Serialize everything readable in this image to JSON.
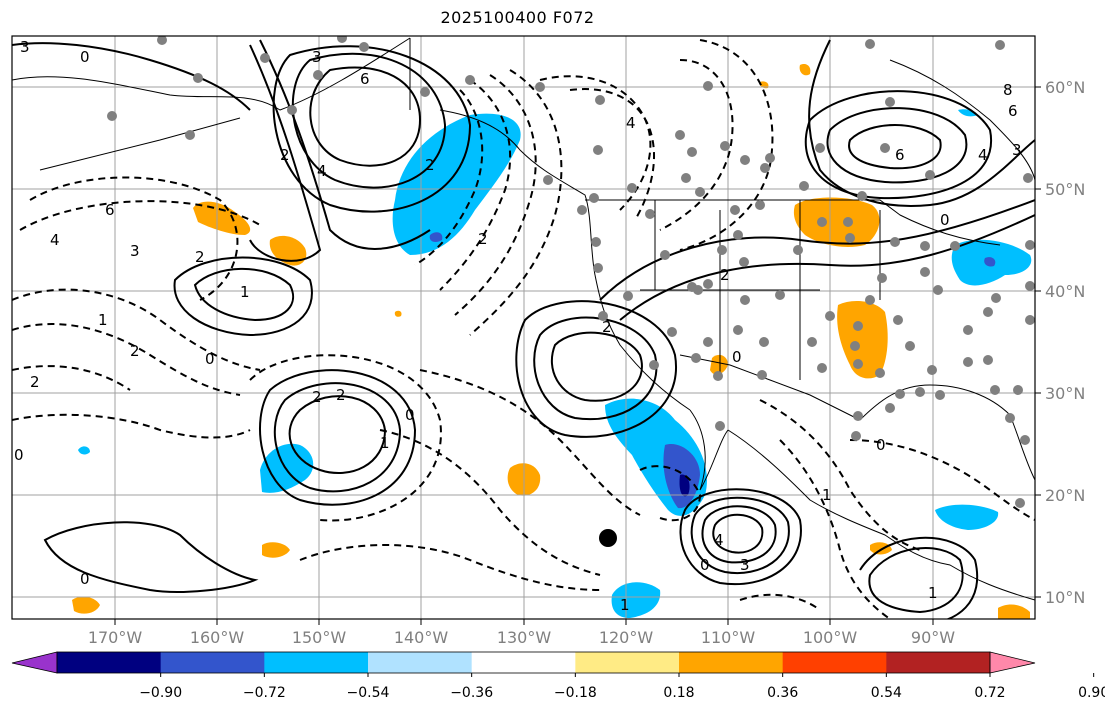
{
  "title": "2025100400 F072",
  "lon_ticks": [
    "170°W",
    "160°W",
    "150°W",
    "140°W",
    "130°W",
    "120°W",
    "110°W",
    "100°W",
    "90°W"
  ],
  "lat_ticks": [
    "60°N",
    "50°N",
    "40°N",
    "30°N",
    "20°N",
    "10°N"
  ],
  "colorbar": {
    "colors": [
      "#9933cc",
      "#000080",
      "#3355cc",
      "#00bfff",
      "#b0e2ff",
      "#ffffff",
      "#ffeb85",
      "#ffa500",
      "#ff4000",
      "#b22222",
      "#ff88aa"
    ],
    "labels": [
      "−0.90",
      "−0.72",
      "−0.54",
      "−0.36",
      "−0.18",
      "0.18",
      "0.36",
      "0.54",
      "0.72",
      "0.90"
    ]
  },
  "contour_labels": [
    {
      "text": "3"
    },
    {
      "text": "0"
    },
    {
      "text": "3"
    },
    {
      "text": "6"
    },
    {
      "text": "4"
    },
    {
      "text": "2"
    },
    {
      "text": "6"
    },
    {
      "text": "4"
    },
    {
      "text": "3"
    },
    {
      "text": "2"
    },
    {
      "text": "1"
    },
    {
      "text": "1"
    },
    {
      "text": "2"
    },
    {
      "text": "0"
    },
    {
      "text": "2"
    },
    {
      "text": "2"
    },
    {
      "text": "2"
    },
    {
      "text": "2"
    },
    {
      "text": "2"
    },
    {
      "text": "1"
    },
    {
      "text": "0"
    },
    {
      "text": "0"
    },
    {
      "text": "2"
    },
    {
      "text": "4"
    },
    {
      "text": "3"
    },
    {
      "text": "0"
    },
    {
      "text": "1"
    },
    {
      "text": "0"
    },
    {
      "text": "8"
    },
    {
      "text": "6"
    },
    {
      "text": "4"
    },
    {
      "text": "6"
    },
    {
      "text": "3"
    },
    {
      "text": "0"
    },
    {
      "text": "0"
    },
    {
      "text": "1"
    },
    {
      "text": "0"
    },
    {
      "text": "2"
    },
    {
      "text": "4"
    },
    {
      "text": "1"
    }
  ]
}
